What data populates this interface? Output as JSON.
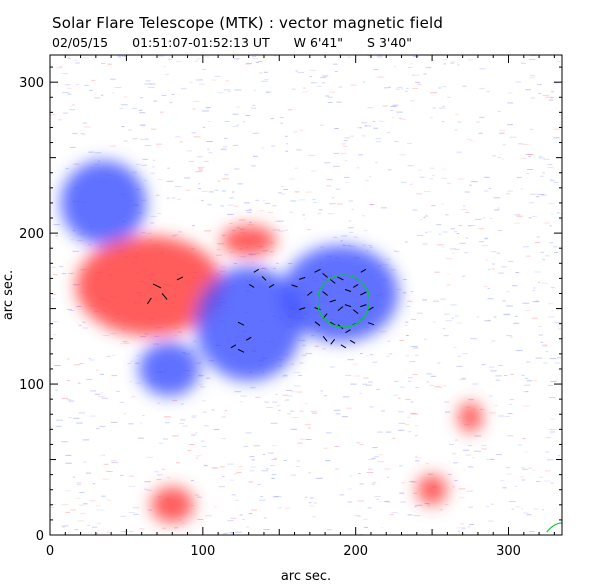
{
  "header": {
    "title": "Solar Flare Telescope (MTK) : vector magnetic field",
    "date": "02/05/15",
    "time_range": "01:51:07-01:52:13 UT",
    "position_w": "W 6'41\"",
    "position_s": "S 3'40\""
  },
  "chart_data": {
    "type": "heatmap",
    "title": "Solar Flare Telescope (MTK) : vector magnetic field",
    "xlabel": "arc sec.",
    "ylabel": "arc sec.",
    "xlim": [
      0,
      335
    ],
    "ylim": [
      0,
      318
    ],
    "x_ticks": [
      0,
      100,
      200,
      300
    ],
    "y_ticks": [
      0,
      100,
      200,
      300
    ],
    "colors": {
      "positive_polarity": "#ff4040",
      "negative_polarity": "#3a4cff",
      "circle": "#00cc33",
      "vector": "#000000"
    },
    "regions": [
      {
        "polarity": "negative",
        "cx": 35,
        "cy": 220,
        "rx": 28,
        "ry": 28
      },
      {
        "polarity": "positive",
        "cx": 65,
        "cy": 165,
        "rx": 48,
        "ry": 33
      },
      {
        "polarity": "positive",
        "cx": 130,
        "cy": 195,
        "rx": 18,
        "ry": 10
      },
      {
        "polarity": "negative",
        "cx": 130,
        "cy": 140,
        "rx": 35,
        "ry": 38
      },
      {
        "polarity": "negative",
        "cx": 190,
        "cy": 160,
        "rx": 38,
        "ry": 32
      },
      {
        "polarity": "negative",
        "cx": 78,
        "cy": 110,
        "rx": 20,
        "ry": 18
      },
      {
        "polarity": "positive",
        "cx": 80,
        "cy": 20,
        "rx": 14,
        "ry": 12
      },
      {
        "polarity": "positive",
        "cx": 250,
        "cy": 30,
        "rx": 10,
        "ry": 10
      },
      {
        "polarity": "positive",
        "cx": 275,
        "cy": 78,
        "rx": 8,
        "ry": 10
      }
    ],
    "circle": {
      "cx": 192,
      "cy": 155,
      "r": 17
    },
    "vectors": [
      [
        70,
        165,
        8,
        -4
      ],
      [
        75,
        158,
        -5,
        6
      ],
      [
        85,
        170,
        6,
        3
      ],
      [
        65,
        155,
        -4,
        -6
      ],
      [
        135,
        175,
        5,
        3
      ],
      [
        140,
        170,
        -4,
        4
      ],
      [
        132,
        165,
        5,
        -3
      ],
      [
        145,
        165,
        -5,
        -3
      ],
      [
        125,
        140,
        6,
        -3
      ],
      [
        130,
        130,
        -5,
        -3
      ],
      [
        120,
        125,
        5,
        3
      ],
      [
        125,
        122,
        -6,
        3
      ],
      [
        160,
        165,
        6,
        -2
      ],
      [
        165,
        170,
        -6,
        -2
      ],
      [
        170,
        160,
        5,
        4
      ],
      [
        165,
        150,
        6,
        2
      ],
      [
        175,
        175,
        6,
        3
      ],
      [
        180,
        172,
        -5,
        4
      ],
      [
        185,
        168,
        5,
        -4
      ],
      [
        190,
        170,
        -6,
        3
      ],
      [
        195,
        162,
        6,
        -2
      ],
      [
        200,
        165,
        -5,
        -3
      ],
      [
        205,
        160,
        6,
        3
      ],
      [
        180,
        160,
        5,
        -4
      ],
      [
        185,
        155,
        -6,
        -2
      ],
      [
        190,
        150,
        5,
        4
      ],
      [
        195,
        152,
        -6,
        2
      ],
      [
        200,
        148,
        5,
        -4
      ],
      [
        205,
        152,
        6,
        2
      ],
      [
        210,
        150,
        -5,
        -3
      ],
      [
        180,
        145,
        4,
        5
      ],
      [
        185,
        140,
        -5,
        3
      ],
      [
        190,
        138,
        5,
        -4
      ],
      [
        195,
        135,
        -5,
        -3
      ],
      [
        200,
        140,
        6,
        2
      ],
      [
        175,
        140,
        -5,
        4
      ],
      [
        180,
        130,
        4,
        -5
      ],
      [
        185,
        128,
        -4,
        -5
      ],
      [
        192,
        125,
        5,
        -3
      ],
      [
        198,
        128,
        -5,
        3
      ],
      [
        210,
        140,
        6,
        -2
      ],
      [
        175,
        150,
        -6,
        2
      ],
      [
        205,
        175,
        5,
        3
      ]
    ]
  }
}
